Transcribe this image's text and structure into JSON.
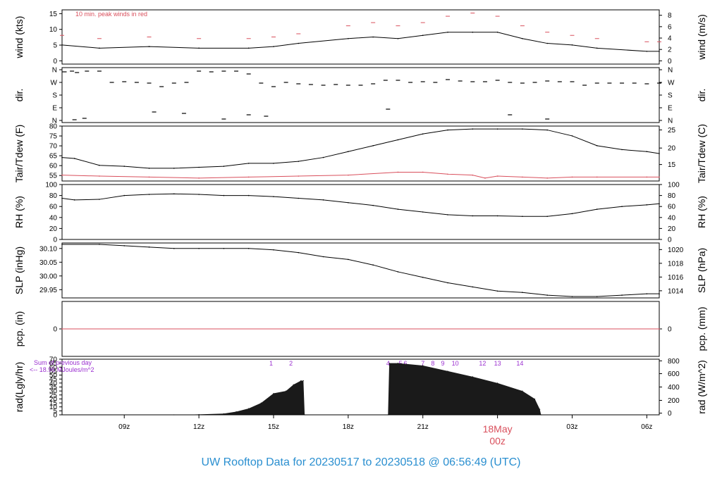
{
  "chart_data": {
    "type": "line",
    "title": "UW Rooftop Data for 20230517  to  20230518 @ 06:56:49  (UTC)",
    "x_axis": {
      "tick_labels": [
        "09z",
        "12z",
        "15z",
        "18z",
        "21z",
        "00z",
        "03z",
        "06z"
      ],
      "date_label": "18May",
      "date_tick": "00z"
    },
    "panels": [
      {
        "id": "wind",
        "ylabel_left": "wind (kts)",
        "ylabel_right": "wind (m/s)",
        "yticks_left": [
          "0",
          "5",
          "10",
          "15"
        ],
        "yticks_right": [
          "0",
          "2",
          "4",
          "6",
          "8"
        ],
        "ylim": [
          0,
          17
        ],
        "annotation": "10 min. peak winds in red",
        "series": [
          {
            "kind": "line",
            "color": "#000000",
            "x": [
              6.5,
              8,
              10,
              12,
              14,
              15,
              16,
              18,
              19,
              20,
              21,
              22,
              23,
              24,
              25,
              26,
              27,
              28,
              30,
              30.5
            ],
            "y": [
              6,
              5,
              5.5,
              5,
              5,
              5.5,
              6.5,
              8,
              8.5,
              8,
              9,
              10,
              10,
              10,
              8,
              6.5,
              6,
              5,
              4,
              4
            ]
          },
          {
            "kind": "dashes",
            "color": "#d94f5c",
            "x": [
              6.5,
              8,
              10,
              12,
              14,
              15,
              16,
              18,
              19,
              20,
              21,
              22,
              23,
              24,
              25,
              26,
              27,
              28,
              30,
              30.5
            ],
            "y": [
              9,
              8,
              8.5,
              8,
              8,
              8.5,
              9.5,
              12,
              13,
              12,
              13,
              15,
              16,
              15,
              12,
              10,
              9,
              8,
              7,
              7
            ]
          }
        ]
      },
      {
        "id": "dir",
        "ylabel_left": "dir.",
        "ylabel_right": "dir.",
        "yticks_left": [
          "N",
          "E",
          "S",
          "W",
          "N"
        ],
        "yticks_right": [
          "N",
          "E",
          "S",
          "W",
          "N"
        ],
        "ylim": [
          0,
          360
        ],
        "series": [
          {
            "kind": "scatter",
            "color": "#000000",
            "x": [
              6.6,
              6.9,
              7.1,
              7.5,
              8.0,
              8.5,
              9.0,
              9.5,
              10.0,
              10.5,
              11.0,
              11.5,
              12.0,
              12.5,
              13.0,
              13.5,
              14.0,
              14.5,
              15.0,
              15.5,
              16.0,
              16.5,
              17.0,
              17.5,
              18.0,
              18.5,
              19.0,
              19.5,
              20.0,
              20.5,
              21.0,
              21.5,
              22.0,
              22.5,
              23.0,
              23.5,
              24.0,
              24.5,
              25.0,
              25.5,
              26.0,
              26.5,
              27.0,
              27.5,
              28.0,
              28.5,
              29.0,
              29.5,
              30.0,
              30.5,
              7.0,
              7.4,
              10.2,
              11.4,
              13.0,
              14.0,
              14.7,
              19.6,
              24.5,
              26.0
            ],
            "y": [
              345,
              350,
              340,
              350,
              350,
              270,
              275,
              270,
              265,
              240,
              265,
              270,
              350,
              345,
              350,
              350,
              330,
              265,
              240,
              270,
              260,
              255,
              250,
              255,
              250,
              250,
              260,
              285,
              285,
              270,
              275,
              270,
              290,
              280,
              275,
              275,
              285,
              270,
              265,
              270,
              280,
              275,
              275,
              250,
              265,
              265,
              265,
              265,
              260,
              265,
              5,
              15,
              60,
              50,
              10,
              40,
              30,
              80,
              40,
              10
            ]
          }
        ]
      },
      {
        "id": "temp",
        "ylabel_left": "Tair/Tdew (F)",
        "ylabel_right": "Tair/Tdew (C)",
        "yticks_left": [
          "55",
          "60",
          "65",
          "70",
          "75",
          "80"
        ],
        "yticks_right": [
          "15",
          "20",
          "25"
        ],
        "ylim": [
          52,
          80
        ],
        "series": [
          {
            "kind": "line",
            "color": "#000000",
            "x": [
              6.5,
              7,
              8,
              9,
              10,
              11,
              12,
              13,
              14,
              15,
              16,
              17,
              18,
              19,
              20,
              21,
              22,
              23,
              24,
              25,
              26,
              27,
              28,
              29,
              30,
              30.5
            ],
            "y": [
              64,
              63.5,
              60,
              59.5,
              58.5,
              58.5,
              59,
              59.5,
              61,
              61,
              62,
              64,
              67,
              70,
              73,
              76,
              78,
              78.5,
              78.5,
              78.5,
              78,
              75,
              70,
              68,
              67,
              66
            ]
          },
          {
            "kind": "line",
            "color": "#d94f5c",
            "x": [
              6.5,
              8,
              10,
              12,
              14,
              16,
              18,
              20,
              21,
              22,
              23,
              23.5,
              24,
              25,
              26,
              27,
              28,
              30,
              30.5
            ],
            "y": [
              55,
              54.5,
              54,
              53.5,
              54,
              54.5,
              55,
              56.5,
              56.5,
              55.5,
              55,
              53.5,
              54.5,
              54,
              53.5,
              54,
              54,
              54,
              54
            ]
          }
        ]
      },
      {
        "id": "rh",
        "ylabel_left": "RH (%)",
        "ylabel_right": "RH (%)",
        "yticks_left": [
          "0",
          "20",
          "40",
          "60",
          "80",
          "100"
        ],
        "yticks_right": [
          "0",
          "20",
          "40",
          "60",
          "80",
          "100"
        ],
        "ylim": [
          0,
          100
        ],
        "series": [
          {
            "kind": "line",
            "color": "#000000",
            "x": [
              6.5,
              7,
              8,
              9,
              10,
              11,
              12,
              13,
              14,
              15,
              16,
              17,
              18,
              19,
              20,
              21,
              22,
              23,
              24,
              25,
              26,
              27,
              28,
              29,
              30,
              30.5
            ],
            "y": [
              75,
              72,
              73,
              80,
              82,
              83,
              82,
              80,
              80,
              78,
              75,
              72,
              67,
              62,
              55,
              50,
              45,
              43,
              43,
              42,
              42,
              47,
              55,
              60,
              63,
              65
            ]
          }
        ]
      },
      {
        "id": "slp",
        "ylabel_left": "SLP (inHg)",
        "ylabel_right": "SLP (hPa)",
        "yticks_left": [
          "29.95",
          "30.00",
          "30.05",
          "30.10"
        ],
        "yticks_right": [
          "1014",
          "1016",
          "1018",
          "1020"
        ],
        "ylim": [
          29.92,
          30.12
        ],
        "series": [
          {
            "kind": "line",
            "color": "#000000",
            "x": [
              6.5,
              8,
              9,
              10,
              11,
              12,
              13,
              14,
              15,
              16,
              17,
              18,
              19,
              20,
              21,
              22,
              23,
              24,
              25,
              26,
              27,
              28,
              29,
              30,
              30.5
            ],
            "y": [
              30.115,
              30.115,
              30.11,
              30.105,
              30.1,
              30.1,
              30.1,
              30.1,
              30.095,
              30.085,
              30.07,
              30.06,
              30.04,
              30.015,
              29.995,
              29.975,
              29.96,
              29.945,
              29.94,
              29.93,
              29.925,
              29.925,
              29.93,
              29.935,
              29.935
            ]
          }
        ]
      },
      {
        "id": "pcp",
        "ylabel_left": "pcp. (in)",
        "ylabel_right": "pcp. (mm)",
        "yticks_left": [
          "0"
        ],
        "yticks_right": [
          "0"
        ],
        "ylim": [
          -1,
          1
        ],
        "series": [
          {
            "kind": "line",
            "color": "#d94f5c",
            "x": [
              6.5,
              30.5
            ],
            "y": [
              0,
              0
            ]
          }
        ]
      },
      {
        "id": "rad",
        "ylabel_left": "rad(Lgly/hr)",
        "ylabel_right": "rad (W/m^2)",
        "yticks_left": [
          "0",
          "5",
          "10",
          "15",
          "20",
          "25",
          "30",
          "35",
          "40",
          "45",
          "50",
          "55",
          "60",
          "65",
          "70"
        ],
        "yticks_right": [
          "0",
          "200",
          "400",
          "600",
          "800"
        ],
        "ylim": [
          0,
          70
        ],
        "annotation_lines": [
          "Sum of previous day",
          "<-- 18.96 MJoules/m^2"
        ],
        "hour_marks": [
          "1",
          "2",
          "4",
          "5",
          "6",
          "7",
          "8",
          "9",
          "10",
          "12",
          "13",
          "14"
        ],
        "hour_mark_x": [
          14.9,
          15.7,
          19.6,
          20.1,
          20.3,
          21.0,
          21.4,
          21.8,
          22.3,
          23.4,
          24.0,
          24.9
        ],
        "series": [
          {
            "kind": "area",
            "color": "#1a1a1a",
            "x": [
              11.0,
              12.0,
              13.0,
              13.5,
              14.0,
              14.5,
              15.0,
              15.5,
              15.8,
              16.1,
              16.2,
              16.25,
              19.6,
              19.65,
              20,
              21,
              22,
              23,
              24,
              25,
              25.5,
              25.7,
              25.75
            ],
            "y": [
              0,
              0.5,
              1.5,
              4,
              8,
              15,
              27,
              30,
              38,
              43,
              43,
              0,
              0,
              65,
              65,
              62,
              55,
              48,
              40,
              30,
              20,
              7,
              0
            ]
          }
        ]
      }
    ]
  }
}
